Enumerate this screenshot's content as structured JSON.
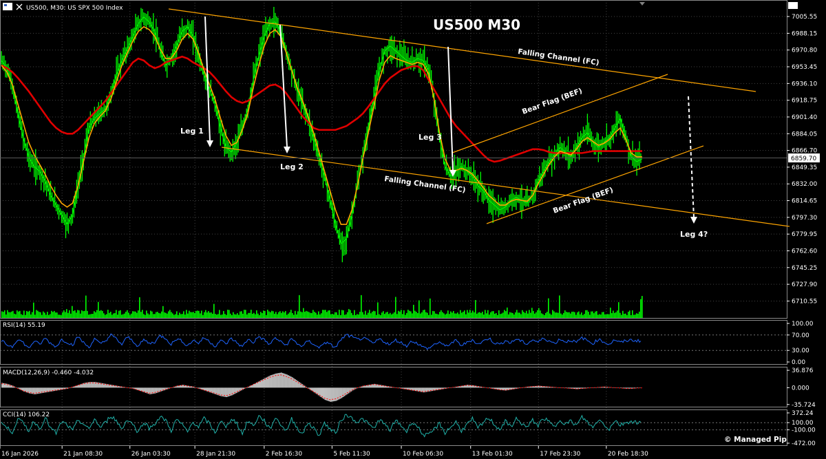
{
  "header": {
    "main_title": "US500, M30:  US SPX 500 Index",
    "chart_title": "US500 M30",
    "current_price": "6859.70",
    "copyright": "© Managed Pip"
  },
  "colors": {
    "background": "#000000",
    "candles": "#00ff00",
    "ma_fast": "#ffa500",
    "ma_slow": "#e00000",
    "channel": "#ffa500",
    "rsi": "#1e64ff",
    "cci": "#20b2aa",
    "macd_hist": "#c0c0c0",
    "macd_signal": "#ff0000",
    "grid": "#444444"
  },
  "annotations": {
    "leg1": "Leg 1",
    "leg2": "Leg 2",
    "leg3": "Leg 3",
    "leg4": "Leg 4?",
    "fc_upper": "Falling Channel (FC)",
    "fc_lower": "Falling Channel (FC)",
    "bef_upper": "Bear Flag (BEF)",
    "bef_lower": "Bear Flag (BEF)"
  },
  "panels": {
    "rsi": {
      "label": "RSI(14) 55.19",
      "ticks": [
        "100.00",
        "70.00",
        "30.00",
        "0.00"
      ],
      "ticks_values": [
        100,
        70,
        30,
        0
      ],
      "current": 55.19
    },
    "macd": {
      "label": "MACD(12,26,9) -0.460 -4.032",
      "ticks": [
        "36.876",
        "0.000",
        "-35.724"
      ],
      "ticks_values": [
        36.876,
        0,
        -35.724
      ]
    },
    "cci": {
      "label": "CCI(14) 106.22",
      "ticks": [
        "372.24",
        "100.00",
        "-100.00",
        "-472.00"
      ],
      "ticks_values": [
        372.24,
        100,
        -100,
        -472
      ]
    }
  },
  "chart_data": {
    "type": "line",
    "ylim": [
      6710.15,
      7005.55
    ],
    "y_ticks": [
      "7005.55",
      "6988.15",
      "6970.80",
      "6953.45",
      "6936.10",
      "6918.75",
      "6901.40",
      "6884.05",
      "6866.70",
      "6849.35",
      "6832.00",
      "6814.65",
      "6797.30",
      "6779.95",
      "6762.60",
      "6745.25",
      "6727.90",
      "6710.55"
    ],
    "y_tick_values": [
      7005.55,
      6988.15,
      6970.8,
      6953.45,
      6936.1,
      6918.75,
      6901.4,
      6884.05,
      6866.7,
      6849.35,
      6832.0,
      6814.65,
      6797.3,
      6779.95,
      6762.6,
      6745.25,
      6727.9,
      6710.55
    ],
    "x_ticks": [
      "16 Jan 2026",
      "21 Jan 08:30",
      "26 Jan 03:30",
      "28 Jan 21:30",
      "2 Feb 16:30",
      "5 Feb 11:30",
      "10 Feb 06:30",
      "13 Feb 01:30",
      "17 Feb 23:30",
      "20 Feb 18:30"
    ],
    "x_tick_index": [
      0,
      43,
      90,
      135,
      183,
      230,
      278,
      326,
      373,
      420
    ],
    "x_max_index": 545,
    "series": [
      {
        "role": "price",
        "values": [
          6960,
          6952,
          6935,
          6905,
          6880,
          6860,
          6850,
          6845,
          6835,
          6820,
          6810,
          6800,
          6790,
          6800,
          6830,
          6860,
          6890,
          6900,
          6905,
          6910,
          6925,
          6945,
          6960,
          6972,
          6985,
          6998,
          7005,
          7000,
          6990,
          6970,
          6955,
          6962,
          6975,
          6990,
          6995,
          6985,
          6965,
          6945,
          6930,
          6915,
          6890,
          6870,
          6865,
          6875,
          6890,
          6910,
          6940,
          6965,
          6985,
          6998,
          7000,
          6990,
          6970,
          6950,
          6930,
          6915,
          6900,
          6880,
          6860,
          6840,
          6815,
          6790,
          6770,
          6775,
          6800,
          6830,
          6860,
          6890,
          6920,
          6950,
          6970,
          6975,
          6970,
          6965,
          6960,
          6958,
          6962,
          6960,
          6950,
          6920,
          6880,
          6850,
          6840,
          6845,
          6850,
          6845,
          6840,
          6830,
          6825,
          6815,
          6810,
          6805,
          6808,
          6815,
          6818,
          6815,
          6812,
          6820,
          6835,
          6845,
          6855,
          6862,
          6870,
          6865,
          6860,
          6870,
          6880,
          6885,
          6875,
          6870,
          6875,
          6880,
          6890,
          6900,
          6880,
          6860,
          6855,
          6858
        ]
      },
      {
        "role": "ma_fast",
        "values": [
          6955,
          6948,
          6935,
          6915,
          6895,
          6875,
          6862,
          6852,
          6842,
          6830,
          6820,
          6812,
          6808,
          6812,
          6830,
          6855,
          6880,
          6895,
          6902,
          6908,
          6920,
          6938,
          6955,
          6968,
          6980,
          6990,
          6995,
          6992,
          6985,
          6972,
          6962,
          6962,
          6970,
          6982,
          6988,
          6982,
          6968,
          6950,
          6935,
          6920,
          6900,
          6882,
          6872,
          6875,
          6888,
          6905,
          6932,
          6955,
          6975,
          6988,
          6992,
          6985,
          6968,
          6950,
          6932,
          6918,
          6902,
          6885,
          6865,
          6845,
          6825,
          6805,
          6790,
          6790,
          6805,
          6830,
          6858,
          6885,
          6912,
          6940,
          6958,
          6965,
          6962,
          6960,
          6958,
          6956,
          6958,
          6956,
          6946,
          6920,
          6885,
          6858,
          6846,
          6846,
          6848,
          6846,
          6842,
          6835,
          6828,
          6820,
          6815,
          6810,
          6810,
          6814,
          6816,
          6815,
          6814,
          6820,
          6832,
          6842,
          6852,
          6860,
          6866,
          6864,
          6862,
          6868,
          6876,
          6880,
          6876,
          6872,
          6874,
          6878,
          6885,
          6890,
          6878,
          6864,
          6860,
          6860
        ]
      },
      {
        "role": "ma_slow",
        "values": [
          6955,
          6952,
          6948,
          6942,
          6935,
          6928,
          6920,
          6912,
          6904,
          6896,
          6890,
          6886,
          6884,
          6884,
          6888,
          6894,
          6900,
          6906,
          6912,
          6918,
          6926,
          6934,
          6942,
          6950,
          6958,
          6962,
          6960,
          6955,
          6952,
          6954,
          6958,
          6960,
          6962,
          6964,
          6962,
          6958,
          6955,
          6952,
          6948,
          6942,
          6935,
          6928,
          6922,
          6918,
          6916,
          6918,
          6922,
          6926,
          6930,
          6934,
          6935,
          6932,
          6926,
          6918,
          6910,
          6902,
          6896,
          6890,
          6888,
          6888,
          6888,
          6888,
          6890,
          6892,
          6896,
          6900,
          6905,
          6912,
          6920,
          6928,
          6936,
          6942,
          6946,
          6950,
          6952,
          6954,
          6954,
          6950,
          6940,
          6930,
          6920,
          6910,
          6900,
          6892,
          6886,
          6880,
          6874,
          6868,
          6862,
          6857,
          6855,
          6856,
          6858,
          6860,
          6862,
          6864,
          6866,
          6868,
          6868,
          6867,
          6865,
          6864,
          6864,
          6864,
          6864,
          6864,
          6864,
          6865,
          6866,
          6866,
          6866,
          6866,
          6866,
          6866,
          6866,
          6866,
          6866,
          6866
        ]
      }
    ],
    "rsi_values": [
      55,
      45,
      40,
      60,
      50,
      35,
      55,
      45,
      62,
      48,
      40,
      58,
      52,
      44,
      66,
      50,
      38,
      60,
      47,
      55,
      70,
      60,
      45,
      65,
      55,
      40,
      58,
      48,
      52,
      68,
      62,
      46,
      60,
      54,
      42,
      57,
      49,
      63,
      53,
      41,
      56,
      47,
      61,
      50,
      39,
      59,
      51,
      66,
      57,
      45,
      63,
      52,
      44,
      60,
      48,
      40,
      55,
      47,
      36,
      52,
      45,
      38,
      58,
      70,
      65,
      58,
      62,
      55,
      48,
      60,
      52,
      45,
      57,
      50,
      42,
      55,
      48,
      38,
      35,
      45,
      52,
      40,
      48,
      55,
      43,
      50,
      58,
      46,
      54,
      62,
      50,
      45,
      56,
      49,
      60,
      53,
      47,
      58,
      51,
      62,
      55,
      48,
      60,
      52,
      57,
      50,
      63,
      55,
      48,
      59,
      52,
      46,
      58,
      50,
      55,
      57,
      55,
      55
    ],
    "macd_values": [
      10,
      8,
      4,
      -2,
      -8,
      -12,
      -14,
      -12,
      -10,
      -8,
      -6,
      -4,
      -2,
      2,
      6,
      10,
      12,
      12,
      10,
      8,
      6,
      4,
      2,
      0,
      -2,
      -6,
      -10,
      -14,
      -12,
      -8,
      -4,
      0,
      4,
      6,
      4,
      2,
      -2,
      -6,
      -10,
      -14,
      -18,
      -20,
      -16,
      -10,
      -4,
      2,
      8,
      14,
      20,
      26,
      30,
      32,
      28,
      22,
      14,
      6,
      -2,
      -10,
      -18,
      -26,
      -30,
      -28,
      -22,
      -14,
      -6,
      0,
      4,
      6,
      8,
      6,
      4,
      2,
      0,
      -2,
      -4,
      -6,
      -8,
      -10,
      -8,
      -6,
      -4,
      -2,
      0,
      2,
      4,
      6,
      5,
      3,
      1,
      -1,
      -3,
      -5,
      -6,
      -4,
      -2,
      0,
      2,
      3,
      4,
      3,
      2,
      1,
      0,
      -1,
      -2,
      -3,
      -2,
      -1,
      0,
      1,
      2,
      1,
      0,
      -1,
      -2,
      -2,
      -1,
      -0.5
    ],
    "cci_values": [
      100,
      -50,
      -150,
      200,
      80,
      -120,
      150,
      -80,
      250,
      -60,
      -200,
      120,
      40,
      -140,
      180,
      60,
      -100,
      220,
      -40,
      100,
      300,
      150,
      -80,
      200,
      60,
      -180,
      140,
      -60,
      80,
      250,
      170,
      -120,
      190,
      40,
      -160,
      130,
      -20,
      210,
      70,
      -190,
      160,
      -50,
      230,
      80,
      -210,
      150,
      10,
      280,
      160,
      -90,
      240,
      60,
      -130,
      200,
      -30,
      -220,
      110,
      -60,
      -250,
      90,
      -80,
      -200,
      180,
      320,
      230,
      120,
      200,
      60,
      -70,
      190,
      40,
      -110,
      160,
      20,
      -150,
      140,
      -20,
      -230,
      -260,
      -90,
      70,
      -180,
      -30,
      120,
      -120,
      40,
      200,
      -60,
      100,
      240,
      50,
      -90,
      130,
      -10,
      200,
      80,
      -40,
      170,
      20,
      230,
      110,
      -30,
      200,
      60,
      140,
      20,
      250,
      120,
      -50,
      190,
      60,
      -80,
      170,
      30,
      110,
      140,
      106,
      106
    ]
  }
}
